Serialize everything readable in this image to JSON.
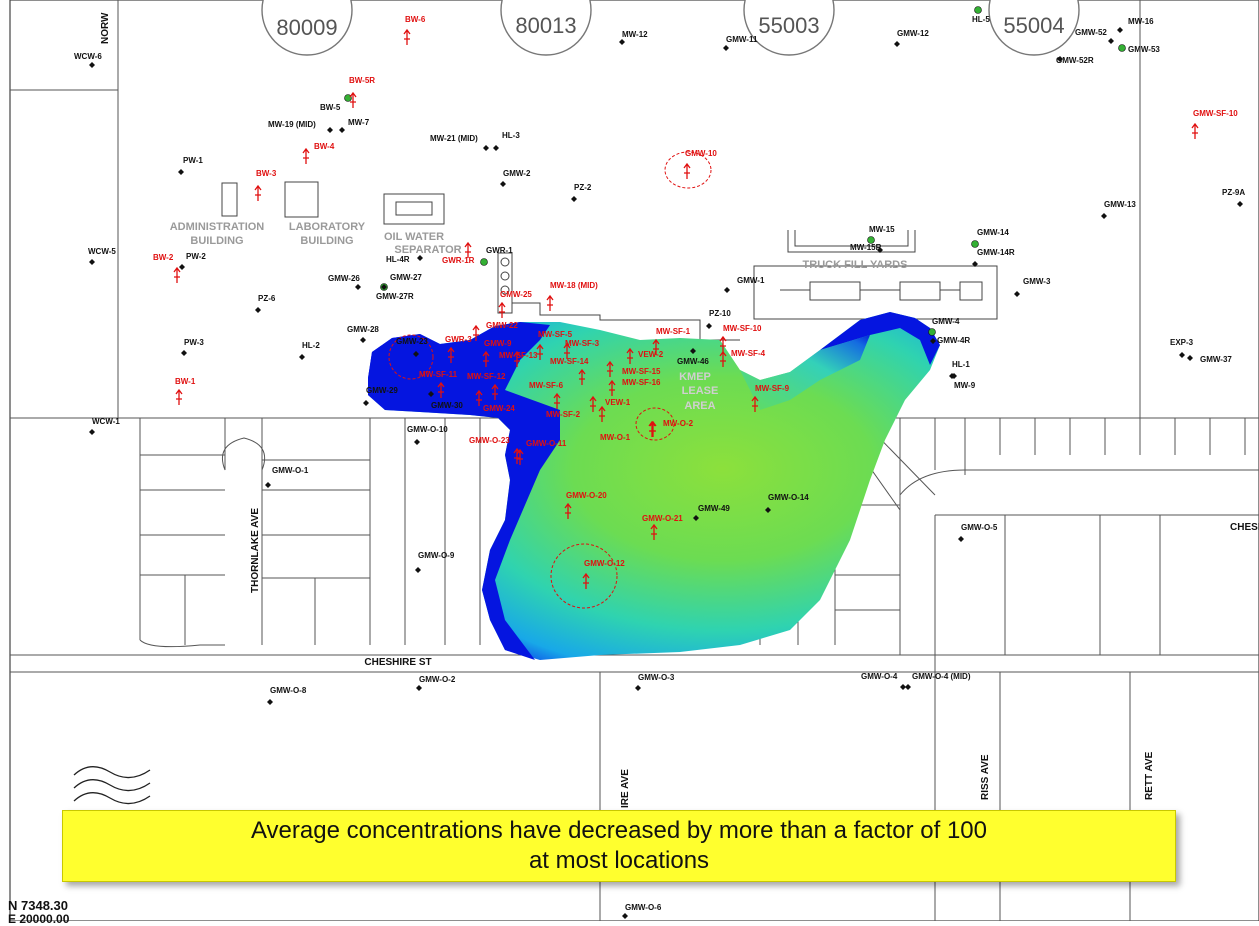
{
  "callout": {
    "line1": "Average concentrations have decreased by more than a factor of 100",
    "line2": "at most locations"
  },
  "corner": {
    "n_coord": "N 7348.30",
    "e_coord": "E 20000.00"
  },
  "colors": {
    "plume_high": "#0010e0",
    "plume_mid": "#20d0c0",
    "plume_low": "#88e040",
    "well_red": "#e01010",
    "callout": "#ffff2e"
  },
  "tanks": [
    "80009",
    "80013",
    "55003",
    "55004"
  ],
  "buildings": {
    "admin": [
      "ADMINISTRATION",
      "BUILDING"
    ],
    "lab": [
      "LABORATORY",
      "BUILDING"
    ],
    "ows": [
      "OIL WATER",
      "SEPARATOR"
    ],
    "truck": "TRUCK FILL YARDS",
    "kmep": [
      "KMEP",
      "LEASE",
      "AREA"
    ]
  },
  "streets": {
    "cheshire": "CHESHIRE ST",
    "cheshire_right": "CHESHI",
    "thornlake": "THORNLAKE AVE",
    "ire": "IRE AVE",
    "riss": "RISS AVE",
    "rett": "RETT AVE",
    "norw": "NORW"
  },
  "wells_black": [
    "WCW-6",
    "MW-19 (MID)",
    "MW-7",
    "BW-5",
    "MW-21 (MID)",
    "HL-3",
    "PW-1",
    "MW-12",
    "GMW-11",
    "GMW-12",
    "HL-5",
    "GMW-52",
    "MW-16",
    "GMW-53",
    "GMW-52R",
    "GMW-2",
    "PZ-2",
    "GMW-13",
    "PZ-9A",
    "WCW-5",
    "PW-2",
    "HL-4R",
    "GMW-27",
    "GMW-27R",
    "GWR-1",
    "GMW-26",
    "MW-15",
    "MW-15R",
    "GMW-14",
    "GMW-14R",
    "GMW-1",
    "GMW-3",
    "PZ-6",
    "PZ-10",
    "GMW-28",
    "GMW-4",
    "GMW-4R",
    "PW-3",
    "HL-2",
    "GMW-23",
    "GMW-46",
    "HL-1",
    "MW-9",
    "EXP-3",
    "GMW-37",
    "GMW-29",
    "GMW-30",
    "WCW-1",
    "GMW-O-10",
    "GMW-O-1",
    "GMW-49",
    "GMW-O-14",
    "GMW-O-5",
    "GMW-O-9",
    "GMW-O-2",
    "GMW-O-3",
    "GMW-O-4",
    "GMW-O-4 (MID)",
    "GMW-O-8",
    "GMW-O-6"
  ],
  "wells_red": [
    "BW-6",
    "BW-5R",
    "BW-4",
    "BW-3",
    "GMW-10",
    "GMW-SF-10",
    "BW-2",
    "GWR-1R",
    "GMW-25",
    "MW-18 (MID)",
    "GMW-22",
    "MW-SF-5",
    "MW-SF-1",
    "MW-SF-10",
    "GWR-3",
    "GMW-9",
    "MW-SF-3",
    "MW-SF-13",
    "MW-SF-14",
    "VEW-2",
    "MW-SF-4",
    "MW-SF-11",
    "MW-SF-12",
    "MW-SF-15",
    "MW-SF-16",
    "MW-SF-9",
    "BW-1",
    "GMW-24",
    "MW-SF-6",
    "VEW-1",
    "MW-SF-2",
    "GMW-O-23",
    "GMW-O-11",
    "MW-O-1",
    "MW-O-2",
    "GMW-O-20",
    "GMW-O-21",
    "GMW-O-12"
  ]
}
